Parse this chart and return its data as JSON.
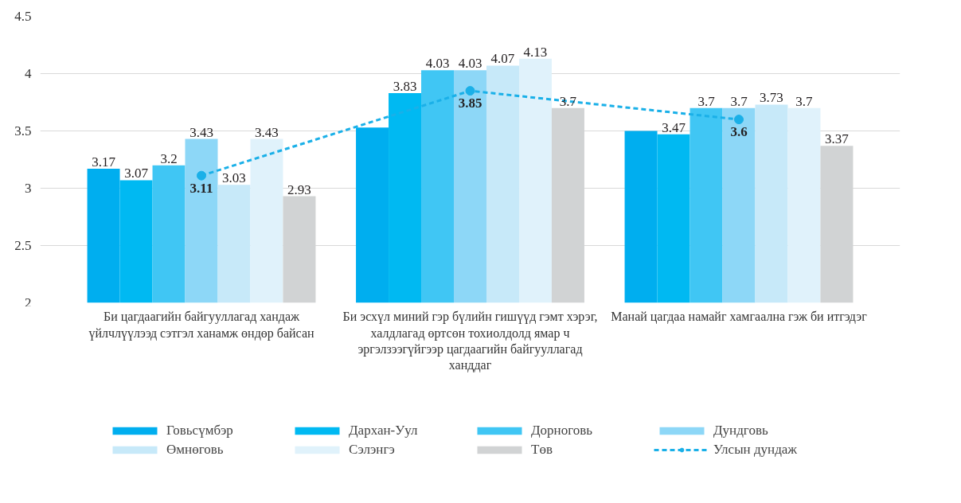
{
  "chart_data": {
    "type": "bar",
    "categories": [
      "Би цагдаагийн байгууллагад хандаж үйлчлүүлээд сэтгэл ханамж өндөр байсан",
      "Би эсхүл миний гэр бүлийн гишүүд гэмт хэрэг, халдлагад өртсөн тохиолдолд ямар ч эргэлзээгүйгээр цагдаагийн байгууллагад ханддаг",
      "Манай цагдаа намайг хамгаална гэж би итгэдэг"
    ],
    "series": [
      {
        "name": "Говьсүмбэр",
        "color": "#00aeef",
        "values": [
          3.17,
          3.53,
          3.5
        ],
        "value_labels": [
          "3.17",
          null,
          null
        ]
      },
      {
        "name": "Дархан-Уул",
        "color": "#00b9f2",
        "values": [
          3.07,
          3.83,
          3.47
        ],
        "value_labels": [
          "3.07",
          "3.83",
          "3.47"
        ]
      },
      {
        "name": "Дорноговь",
        "color": "#40c6f4",
        "values": [
          3.2,
          4.03,
          3.7
        ],
        "value_labels": [
          "3.2",
          "4.03",
          "3.7"
        ]
      },
      {
        "name": "Дундговь",
        "color": "#8dd7f7",
        "values": [
          3.43,
          4.03,
          3.7
        ],
        "value_labels": [
          "3.43",
          "4.03",
          "3.7"
        ]
      },
      {
        "name": "Өмнөговь",
        "color": "#c7e9f9",
        "values": [
          3.03,
          4.07,
          3.73
        ],
        "value_labels": [
          "3.03",
          "4.07",
          "3.73"
        ]
      },
      {
        "name": "Сэлэнгэ",
        "color": "#e0f2fb",
        "values": [
          3.43,
          4.13,
          3.7
        ],
        "value_labels": [
          "3.43",
          "4.13",
          "3.7"
        ]
      },
      {
        "name": "Төв",
        "color": "#d1d3d4",
        "values": [
          2.93,
          3.7,
          3.37
        ],
        "value_labels": [
          "2.93",
          "3.7",
          "3.37"
        ]
      },
      {
        "name": "Улсын дундаж",
        "type": "line",
        "color": "#1ab0e8",
        "line_style": "dashed",
        "marker": "circle",
        "values": [
          3.11,
          3.85,
          3.6
        ],
        "value_labels": [
          "3.11",
          "3.85",
          "3.6"
        ]
      }
    ],
    "ylim": [
      2,
      4.5
    ],
    "yticks": [
      2,
      2.5,
      3,
      3.5,
      4,
      4.5
    ],
    "grid": "y",
    "legend": "bottom"
  }
}
